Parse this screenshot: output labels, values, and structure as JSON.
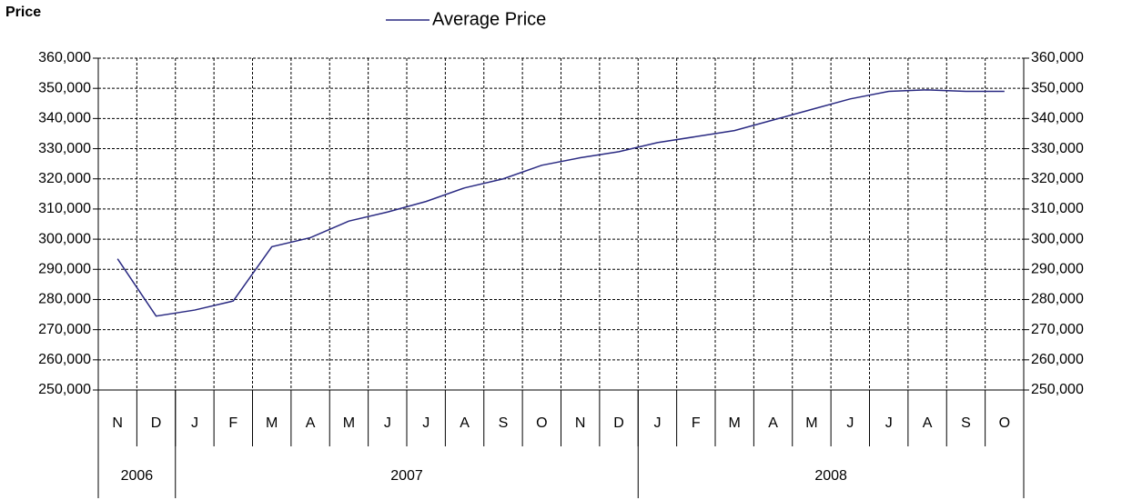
{
  "chart_data": {
    "type": "line",
    "y_title": "Price",
    "categories": [
      "N",
      "D",
      "J",
      "F",
      "M",
      "A",
      "M",
      "J",
      "J",
      "A",
      "S",
      "O",
      "N",
      "D",
      "J",
      "F",
      "M",
      "A",
      "M",
      "J",
      "J",
      "A",
      "S",
      "O"
    ],
    "year_groups": [
      {
        "label": "2006",
        "count": 2
      },
      {
        "label": "2007",
        "count": 12
      },
      {
        "label": "2008",
        "count": 10
      }
    ],
    "series": [
      {
        "name": "Average Price",
        "color": "#2a2a82",
        "values": [
          293500,
          274500,
          276500,
          279500,
          297500,
          300500,
          306000,
          309000,
          312500,
          317000,
          320000,
          324500,
          327000,
          329000,
          332000,
          334000,
          336000,
          339500,
          343000,
          346500,
          349000,
          349500,
          349000,
          349000
        ]
      }
    ],
    "ylim": [
      250000,
      360000
    ],
    "yticks": [
      {
        "value": 250000,
        "label": "250,000"
      },
      {
        "value": 260000,
        "label": "260,000"
      },
      {
        "value": 270000,
        "label": "270,000"
      },
      {
        "value": 280000,
        "label": "280,000"
      },
      {
        "value": 290000,
        "label": "290,000"
      },
      {
        "value": 300000,
        "label": "300,000"
      },
      {
        "value": 310000,
        "label": "310,000"
      },
      {
        "value": 320000,
        "label": "320,000"
      },
      {
        "value": 330000,
        "label": "330,000"
      },
      {
        "value": 340000,
        "label": "340,000"
      },
      {
        "value": 350000,
        "label": "350,000"
      },
      {
        "value": 360000,
        "label": "360,000"
      }
    ],
    "y2lim": [
      250000,
      360000
    ],
    "y2ticks": [
      {
        "value": 250000,
        "label": "250,000"
      },
      {
        "value": 260000,
        "label": "260,000"
      },
      {
        "value": 270000,
        "label": "270,000"
      },
      {
        "value": 280000,
        "label": "280,000"
      },
      {
        "value": 290000,
        "label": "290,000"
      },
      {
        "value": 300000,
        "label": "300,000"
      },
      {
        "value": 310000,
        "label": "310,000"
      },
      {
        "value": 320000,
        "label": "320,000"
      },
      {
        "value": 330000,
        "label": "330,000"
      },
      {
        "value": 340000,
        "label": "340,000"
      },
      {
        "value": 350000,
        "label": "350,000"
      },
      {
        "value": 360000,
        "label": "360,000"
      }
    ],
    "grid": true
  }
}
